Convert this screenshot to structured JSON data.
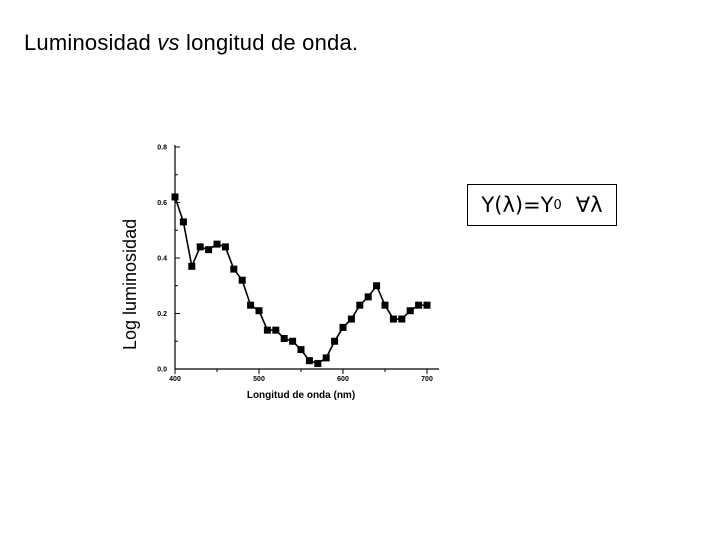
{
  "slide": {
    "title_part1": "Luminosidad ",
    "title_part2": "vs",
    "title_part3": " longitud de onda.",
    "y_side_label": "Log luminosidad"
  },
  "formula": {
    "left": "Y(λ)=Y",
    "sub": "0",
    "right": "∀λ"
  },
  "chart_data": {
    "type": "line",
    "xlabel": "Longitud de onda (nm)",
    "ylabel": "Log luminosidad",
    "xlim": [
      400,
      700
    ],
    "ylim": [
      0.0,
      0.8
    ],
    "x_ticks": [
      400,
      500,
      600,
      700
    ],
    "x_tick_labels": [
      "400",
      "500",
      "600",
      "700"
    ],
    "y_ticks": [
      0.0,
      0.2,
      0.4,
      0.6,
      0.8
    ],
    "y_tick_labels": [
      "0.0",
      "0.2",
      "0.4",
      "0.6",
      "0.8"
    ],
    "grid": false,
    "marker": "square",
    "x": [
      400,
      410,
      420,
      430,
      440,
      450,
      460,
      470,
      480,
      490,
      500,
      510,
      520,
      530,
      540,
      550,
      560,
      570,
      580,
      590,
      600,
      610,
      620,
      630,
      640,
      650,
      660,
      670,
      680,
      690,
      700
    ],
    "y": [
      0.62,
      0.53,
      0.37,
      0.44,
      0.43,
      0.45,
      0.44,
      0.36,
      0.32,
      0.23,
      0.21,
      0.14,
      0.14,
      0.11,
      0.1,
      0.07,
      0.03,
      0.02,
      0.04,
      0.1,
      0.15,
      0.18,
      0.23,
      0.26,
      0.3,
      0.23,
      0.18,
      0.18,
      0.21,
      0.23,
      0.23
    ]
  }
}
